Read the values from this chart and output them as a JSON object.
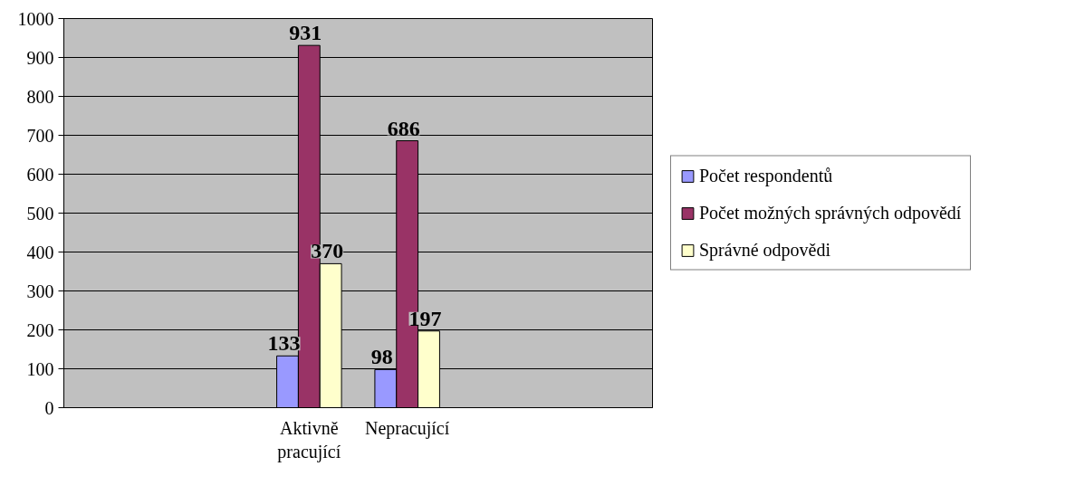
{
  "chart_data": {
    "type": "bar",
    "categories": [
      null,
      null,
      "Aktivně pracující",
      "Nepracující",
      null,
      null
    ],
    "series": [
      {
        "name": "Počet respondentů",
        "color": "#9999ff",
        "values": [
          null,
          null,
          133,
          98,
          null,
          null
        ]
      },
      {
        "name": "Počet možných správných odpovědí",
        "color": "#993366",
        "values": [
          null,
          null,
          931,
          686,
          null,
          null
        ]
      },
      {
        "name": "Správné odpovědi",
        "color": "#ffffcc",
        "values": [
          null,
          null,
          370,
          197,
          null,
          null
        ]
      }
    ],
    "ylim": [
      0,
      1000
    ],
    "yticks": [
      0,
      100,
      200,
      300,
      400,
      500,
      600,
      700,
      800,
      900,
      1000
    ],
    "grid": "y",
    "legend": "right",
    "data_labels": true
  }
}
